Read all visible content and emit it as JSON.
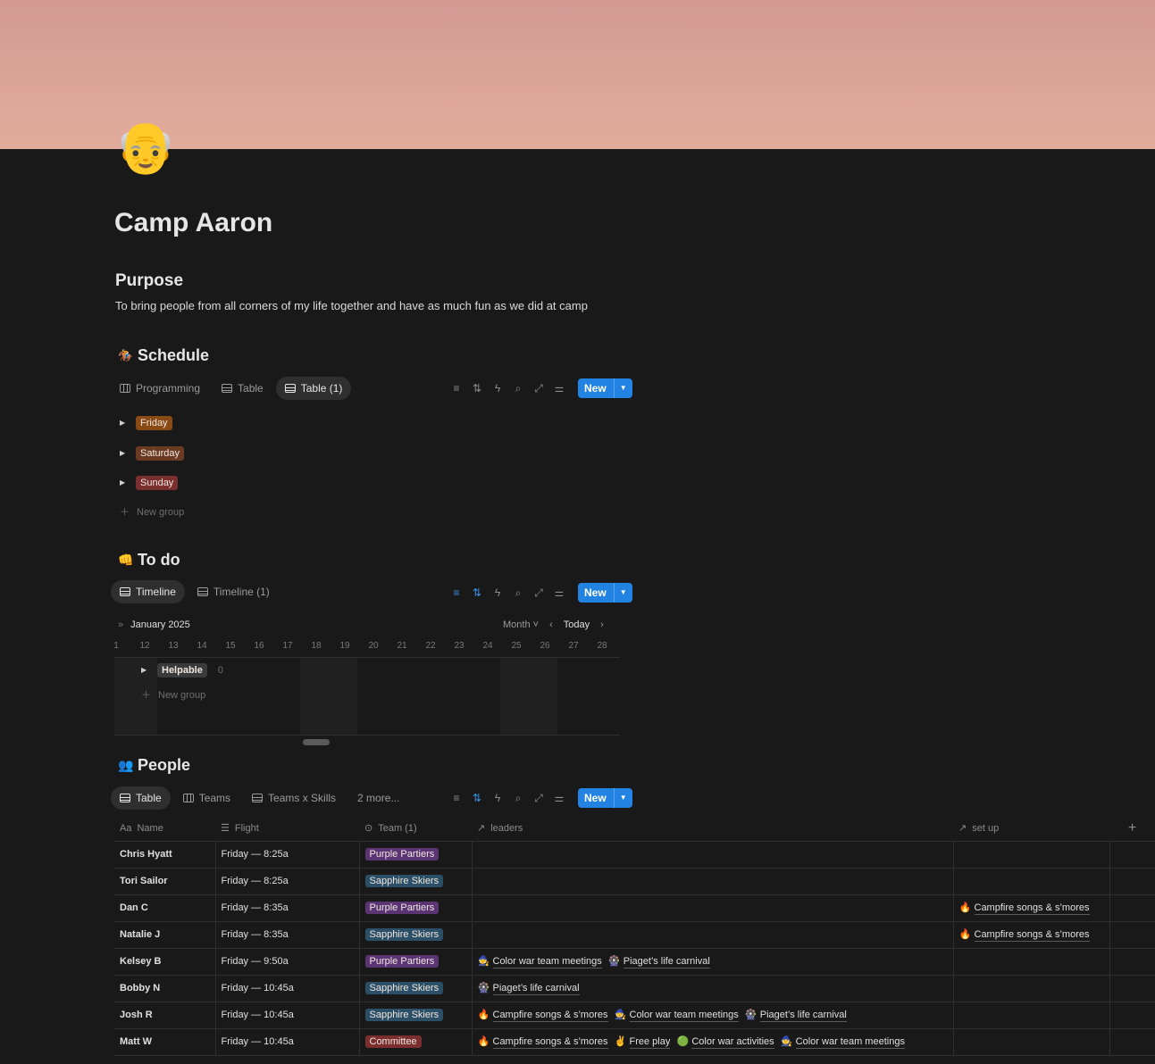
{
  "page": {
    "icon": "👴",
    "title": "Camp Aaron"
  },
  "purpose": {
    "heading": "Purpose",
    "text": "To bring people from all corners of my life together and have as much fun as we did at camp"
  },
  "colors": {
    "background": "#191919",
    "accent": "#2383e2",
    "cover": "#e0aa9b"
  },
  "schedule": {
    "icon": "🏇",
    "heading": "Schedule",
    "tabs": [
      {
        "label": "Programming",
        "icon": "board"
      },
      {
        "label": "Table",
        "icon": "table"
      },
      {
        "label": "Table (1)",
        "icon": "table",
        "active": true
      }
    ],
    "new_label": "New",
    "groups": [
      {
        "label": "Friday",
        "color": "#8a4a14"
      },
      {
        "label": "Saturday",
        "color": "#6b3a22"
      },
      {
        "label": "Sunday",
        "color": "#7a2e2e"
      }
    ],
    "new_group": "New group"
  },
  "todo": {
    "icon": "👊",
    "heading": "To do",
    "tabs": [
      {
        "label": "Timeline",
        "active": true
      },
      {
        "label": "Timeline (1)"
      }
    ],
    "new_label": "New",
    "month": "January 2025",
    "scale": "Month",
    "today": "Today",
    "dates": [
      "1",
      "12",
      "13",
      "14",
      "15",
      "16",
      "17",
      "18",
      "19",
      "20",
      "21",
      "22",
      "23",
      "24",
      "25",
      "26",
      "27",
      "28"
    ],
    "group": {
      "label": "Helpable",
      "count": "0"
    },
    "new_group": "New group"
  },
  "people": {
    "icon": "👥",
    "heading": "People",
    "tabs": [
      {
        "label": "Table",
        "icon": "table",
        "active": true
      },
      {
        "label": "Teams",
        "icon": "board"
      },
      {
        "label": "Teams x Skills",
        "icon": "table"
      }
    ],
    "more": "2 more...",
    "new_label": "New",
    "columns": [
      "Name",
      "Flight",
      "Team (1)",
      "leaders",
      "set up"
    ],
    "team_colors": {
      "Purple Partiers": "#5a3473",
      "Sapphire Skiers": "#2b4f66",
      "Committee": "#7a2e2e"
    },
    "rows": [
      {
        "name": "Chris Hyatt",
        "flight": "Friday — 8:25a",
        "team": "Purple Partiers",
        "leaders": [],
        "setup": []
      },
      {
        "name": "Tori Sailor",
        "flight": "Friday — 8:25a",
        "team": "Sapphire Skiers",
        "leaders": [],
        "setup": []
      },
      {
        "name": "Dan C",
        "flight": "Friday — 8:35a",
        "team": "Purple Partiers",
        "leaders": [],
        "setup": [
          {
            "icon": "🔥",
            "label": "Campfire songs & s’mores"
          }
        ]
      },
      {
        "name": "Natalie J",
        "flight": "Friday — 8:35a",
        "team": "Sapphire Skiers",
        "leaders": [],
        "setup": [
          {
            "icon": "🔥",
            "label": "Campfire songs & s’mores"
          }
        ]
      },
      {
        "name": "Kelsey B",
        "flight": "Friday — 9:50a",
        "team": "Purple Partiers",
        "leaders": [
          {
            "icon": "🧙",
            "label": "Color war team meetings"
          },
          {
            "icon": "🎡",
            "label": "Piaget’s life carnival"
          }
        ],
        "setup": []
      },
      {
        "name": "Bobby N",
        "flight": "Friday — 10:45a",
        "team": "Sapphire Skiers",
        "leaders": [
          {
            "icon": "🎡",
            "label": "Piaget’s life carnival"
          }
        ],
        "setup": []
      },
      {
        "name": "Josh R",
        "flight": "Friday — 10:45a",
        "team": "Sapphire Skiers",
        "leaders": [
          {
            "icon": "🔥",
            "label": "Campfire songs & s’mores"
          },
          {
            "icon": "🧙",
            "label": "Color war team meetings"
          },
          {
            "icon": "🎡",
            "label": "Piaget’s life carnival"
          }
        ],
        "setup": []
      },
      {
        "name": "Matt W",
        "flight": "Friday — 10:45a",
        "team": "Committee",
        "leaders": [
          {
            "icon": "🔥",
            "label": "Campfire songs & s’mores"
          },
          {
            "icon": "✌️",
            "label": "Free play"
          },
          {
            "icon": "🟢",
            "label": "Color war activities"
          },
          {
            "icon": "🧙",
            "label": "Color war team meetings"
          }
        ],
        "setup": []
      }
    ]
  }
}
